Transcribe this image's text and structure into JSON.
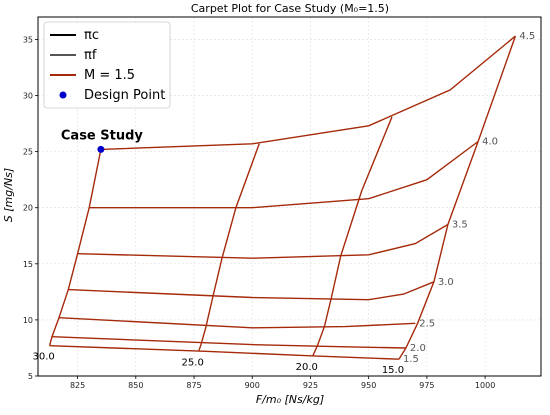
{
  "chart_data": {
    "type": "line",
    "title": "Carpet Plot for Case Study (M₀=1.5)",
    "xlabel": "F/m₀ [Ns/kg]",
    "ylabel": "S [mg/Ns]",
    "xlim": [
      808,
      1024
    ],
    "ylim": [
      5,
      37
    ],
    "xticks": [
      825,
      850,
      875,
      900,
      925,
      950,
      975,
      1000
    ],
    "yticks": [
      5,
      10,
      15,
      20,
      25,
      30,
      35
    ],
    "grid": true,
    "legend_position": "top-left",
    "legend": [
      {
        "label": "πc",
        "color": "#000000",
        "kind": "line"
      },
      {
        "label": "πf",
        "color": "#555555",
        "kind": "line"
      },
      {
        "label": "M = 1.5",
        "color": "#a52a0a",
        "kind": "line"
      },
      {
        "label": "Design Point",
        "color": "#0000cc",
        "kind": "point"
      }
    ],
    "series_color": "#a52a0a",
    "pi_f_curves": [
      {
        "label": "4.5",
        "points": [
          [
            835,
            25.2
          ],
          [
            900,
            25.7
          ],
          [
            950,
            27.3
          ],
          [
            985,
            30.5
          ],
          [
            1013,
            35.3
          ]
        ]
      },
      {
        "label": "4.0",
        "points": [
          [
            830,
            20.0
          ],
          [
            900,
            20.0
          ],
          [
            950,
            20.8
          ],
          [
            975,
            22.5
          ],
          [
            997,
            25.9
          ]
        ]
      },
      {
        "label": "3.5",
        "points": [
          [
            825,
            15.9
          ],
          [
            900,
            15.5
          ],
          [
            950,
            15.8
          ],
          [
            970,
            16.8
          ],
          [
            984,
            18.5
          ]
        ]
      },
      {
        "label": "3.0",
        "points": [
          [
            821,
            12.7
          ],
          [
            900,
            12.0
          ],
          [
            950,
            11.8
          ],
          [
            965,
            12.3
          ],
          [
            978,
            13.4
          ]
        ]
      },
      {
        "label": "2.5",
        "points": [
          [
            817,
            10.2
          ],
          [
            900,
            9.3
          ],
          [
            940,
            9.4
          ],
          [
            970,
            9.7
          ]
        ]
      },
      {
        "label": "2.0",
        "points": [
          [
            814,
            8.5
          ],
          [
            900,
            7.8
          ],
          [
            940,
            7.6
          ],
          [
            966,
            7.5
          ]
        ]
      },
      {
        "label": "1.5",
        "points": [
          [
            813,
            7.7
          ],
          [
            880,
            7.2
          ],
          [
            925,
            6.8
          ],
          [
            963,
            6.5
          ]
        ]
      }
    ],
    "pi_c_curves": [
      {
        "label": "30.0",
        "points": [
          [
            835,
            25.2
          ],
          [
            830,
            20.0
          ],
          [
            825,
            15.9
          ],
          [
            821,
            12.7
          ],
          [
            817,
            10.2
          ],
          [
            814,
            8.5
          ],
          [
            813,
            7.7
          ]
        ]
      },
      {
        "label": "25.0",
        "points": [
          [
            903,
            25.7
          ],
          [
            893,
            20.0
          ],
          [
            887,
            15.5
          ],
          [
            883,
            12.0
          ],
          [
            880,
            9.3
          ],
          [
            878,
            7.8
          ],
          [
            877,
            7.2
          ]
        ]
      },
      {
        "label": "20.0",
        "points": [
          [
            960,
            28.1
          ],
          [
            947,
            21.5
          ],
          [
            938,
            15.7
          ],
          [
            934,
            12.0
          ],
          [
            931,
            9.4
          ],
          [
            928,
            7.7
          ],
          [
            926,
            6.8
          ]
        ]
      },
      {
        "label": "15.0",
        "points": [
          [
            1013,
            35.3
          ],
          [
            997,
            25.9
          ],
          [
            984,
            18.5
          ],
          [
            978,
            13.4
          ],
          [
            971,
            9.7
          ],
          [
            966,
            7.5
          ],
          [
            963,
            6.5
          ]
        ]
      }
    ],
    "design_point": {
      "x": 835,
      "y": 25.2,
      "label": "Case Study"
    }
  }
}
